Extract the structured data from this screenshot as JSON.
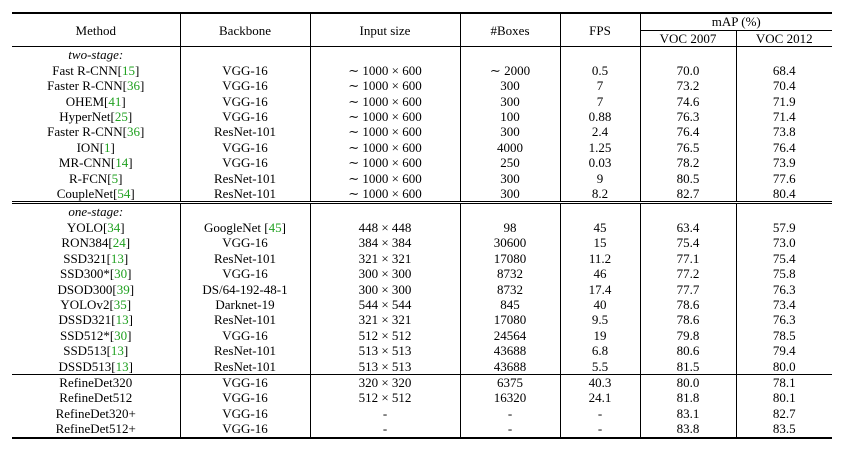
{
  "header": {
    "method": "Method",
    "backbone": "Backbone",
    "input_size": "Input size",
    "boxes": "#Boxes",
    "fps": "FPS",
    "map": "mAP (%)",
    "voc2007": "VOC 2007",
    "voc2012": "VOC 2012"
  },
  "sections": [
    {
      "label": "two-stage:",
      "rows": [
        {
          "name": "Fast R-CNN",
          "cite": "15",
          "backbone": "VGG-16",
          "input": "∼ 1000 × 600",
          "boxes": "∼ 2000",
          "fps": "0.5",
          "voc2007": "70.0",
          "voc2012": "68.4"
        },
        {
          "name": "Faster R-CNN",
          "cite": "36",
          "backbone": "VGG-16",
          "input": "∼ 1000 × 600",
          "boxes": "300",
          "fps": "7",
          "voc2007": "73.2",
          "voc2012": "70.4"
        },
        {
          "name": "OHEM",
          "cite": "41",
          "backbone": "VGG-16",
          "input": "∼ 1000 × 600",
          "boxes": "300",
          "fps": "7",
          "voc2007": "74.6",
          "voc2012": "71.9"
        },
        {
          "name": "HyperNet",
          "cite": "25",
          "backbone": "VGG-16",
          "input": "∼ 1000 × 600",
          "boxes": "100",
          "fps": "0.88",
          "voc2007": "76.3",
          "voc2012": "71.4"
        },
        {
          "name": "Faster R-CNN",
          "cite": "36",
          "backbone": "ResNet-101",
          "input": "∼ 1000 × 600",
          "boxes": "300",
          "fps": "2.4",
          "voc2007": "76.4",
          "voc2012": "73.8"
        },
        {
          "name": "ION",
          "cite": "1",
          "backbone": "VGG-16",
          "input": "∼ 1000 × 600",
          "boxes": "4000",
          "fps": "1.25",
          "voc2007": "76.5",
          "voc2012": "76.4"
        },
        {
          "name": "MR-CNN",
          "cite": "14",
          "backbone": "VGG-16",
          "input": "∼ 1000 × 600",
          "boxes": "250",
          "fps": "0.03",
          "voc2007": "78.2",
          "voc2012": "73.9"
        },
        {
          "name": "R-FCN",
          "cite": "5",
          "backbone": "ResNet-101",
          "input": "∼ 1000 × 600",
          "boxes": "300",
          "fps": "9",
          "voc2007": "80.5",
          "voc2012": "77.6"
        },
        {
          "name": "CoupleNet",
          "cite": "54",
          "backbone": "ResNet-101",
          "input": "∼ 1000 × 600",
          "boxes": "300",
          "fps": "8.2",
          "voc2007": "82.7",
          "voc2012": "80.4"
        }
      ]
    },
    {
      "label": "one-stage:",
      "rows": [
        {
          "name": "YOLO",
          "cite": "34",
          "backbone": "GoogleNet",
          "backbone_cite": "45",
          "input": "448 × 448",
          "boxes": "98",
          "fps": "45",
          "voc2007": "63.4",
          "voc2012": "57.9"
        },
        {
          "name": "RON384",
          "cite": "24",
          "backbone": "VGG-16",
          "input": "384 × 384",
          "boxes": "30600",
          "fps": "15",
          "voc2007": "75.4",
          "voc2012": "73.0"
        },
        {
          "name": "SSD321",
          "cite": "13",
          "backbone": "ResNet-101",
          "input": "321 × 321",
          "boxes": "17080",
          "fps": "11.2",
          "voc2007": "77.1",
          "voc2012": "75.4"
        },
        {
          "name": "SSD300*",
          "cite": "30",
          "backbone": "VGG-16",
          "input": "300 × 300",
          "boxes": "8732",
          "fps": "46",
          "voc2007": "77.2",
          "voc2012": "75.8"
        },
        {
          "name": "DSOD300",
          "cite": "39",
          "backbone": "DS/64-192-48-1",
          "input": "300 × 300",
          "boxes": "8732",
          "fps": "17.4",
          "voc2007": "77.7",
          "voc2012": "76.3"
        },
        {
          "name": "YOLOv2",
          "cite": "35",
          "backbone": "Darknet-19",
          "input": "544 × 544",
          "boxes": "845",
          "fps": "40",
          "voc2007": "78.6",
          "voc2012": "73.4"
        },
        {
          "name": "DSSD321",
          "cite": "13",
          "backbone": "ResNet-101",
          "input": "321 × 321",
          "boxes": "17080",
          "fps": "9.5",
          "voc2007": "78.6",
          "voc2012": "76.3"
        },
        {
          "name": "SSD512*",
          "cite": "30",
          "backbone": "VGG-16",
          "input": "512 × 512",
          "boxes": "24564",
          "fps": "19",
          "voc2007": "79.8",
          "voc2012": "78.5"
        },
        {
          "name": "SSD513",
          "cite": "13",
          "backbone": "ResNet-101",
          "input": "513 × 513",
          "boxes": "43688",
          "fps": "6.8",
          "voc2007": "80.6",
          "voc2012": "79.4"
        },
        {
          "name": "DSSD513",
          "cite": "13",
          "backbone": "ResNet-101",
          "input": "513 × 513",
          "boxes": "43688",
          "fps": "5.5",
          "voc2007": "81.5",
          "voc2012": "80.0"
        }
      ]
    }
  ],
  "ours": [
    {
      "name": "RefineDet320",
      "backbone": "VGG-16",
      "input": "320 × 320",
      "boxes": "6375",
      "fps": "40.3",
      "voc2007": "80.0",
      "voc2012": "78.1"
    },
    {
      "name": "RefineDet512",
      "backbone": "VGG-16",
      "input": "512 × 512",
      "boxes": "16320",
      "fps": "24.1",
      "voc2007": "81.8",
      "voc2012": "80.1"
    },
    {
      "name": "RefineDet320+",
      "backbone": "VGG-16",
      "input": "-",
      "boxes": "-",
      "fps": "-",
      "voc2007": "83.1",
      "voc2012": "82.7"
    },
    {
      "name": "RefineDet512+",
      "backbone": "VGG-16",
      "input": "-",
      "boxes": "-",
      "fps": "-",
      "voc2007": "83.8",
      "voc2012": "83.5",
      "bold": true
    }
  ]
}
